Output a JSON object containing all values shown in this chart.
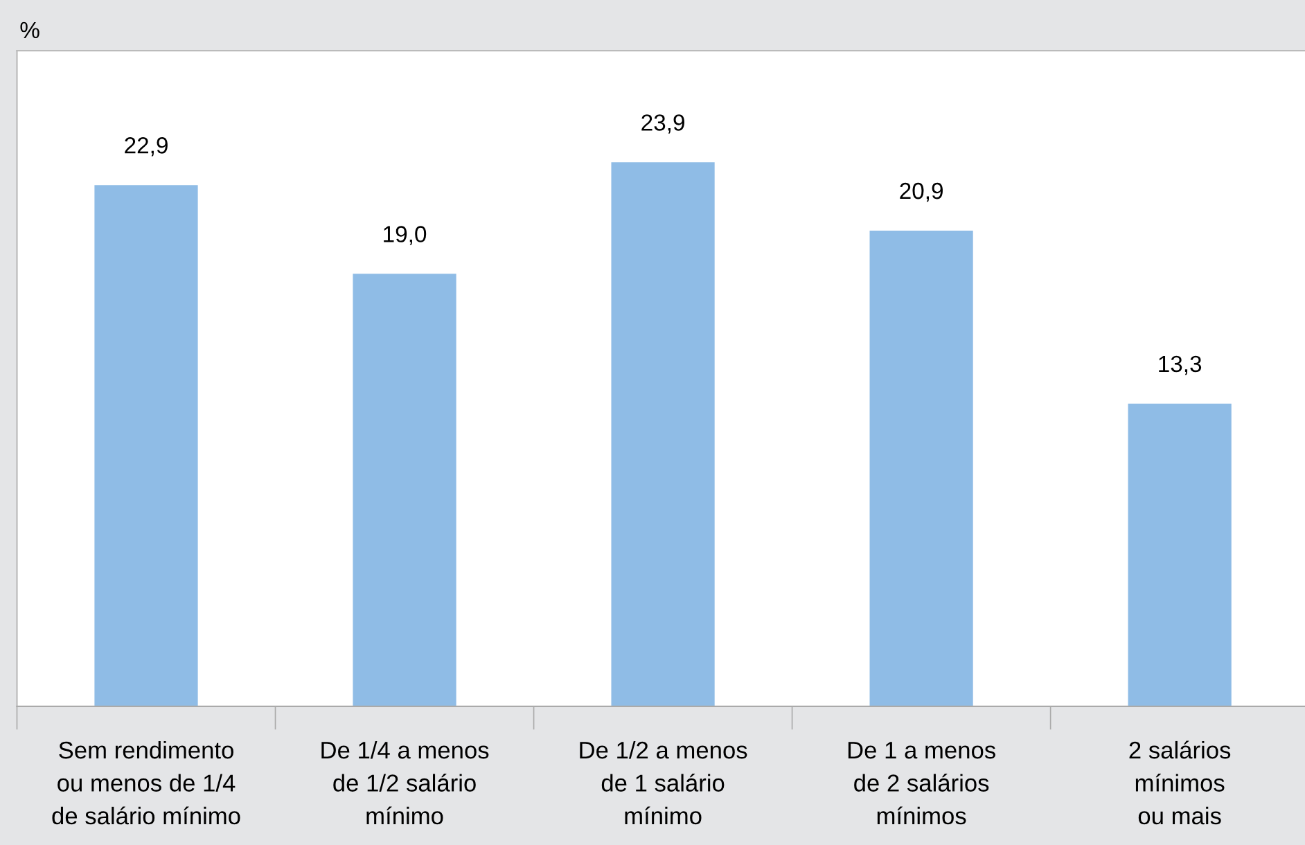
{
  "chart_data": {
    "type": "bar",
    "annotations": [
      "%"
    ],
    "categories": [
      "Sem rendimento\nou menos de 1/4\nde salário mínimo",
      "De 1/4 a menos\nde 1/2 salário\nmínimo",
      "De 1/2 a menos\nde 1 salário\nmínimo",
      "De 1 a menos\nde 2 salários\nmínimos",
      "2 salários\nmínimos\nou mais"
    ],
    "values": [
      22.9,
      19.0,
      23.9,
      20.9,
      13.3
    ],
    "value_labels": [
      "22,9",
      "19,0",
      "23,9",
      "20,9",
      "13,3"
    ],
    "color": "#8fbce6",
    "tick_labels": "x",
    "grid": false,
    "legend": false
  }
}
